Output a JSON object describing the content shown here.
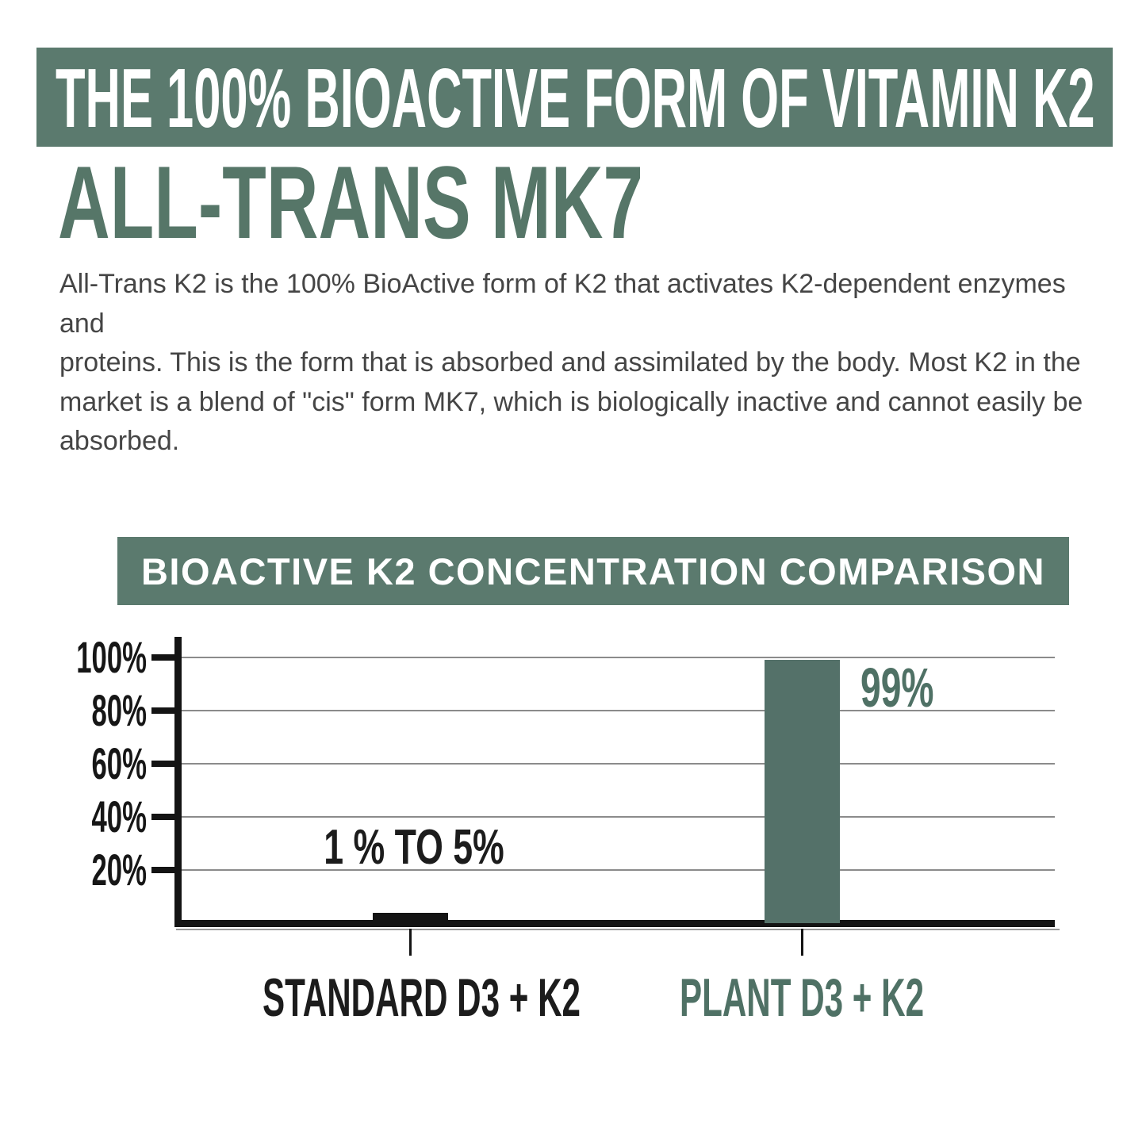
{
  "header": {
    "banner_title": "THE 100% BIOACTIVE FORM OF VITAMIN K2",
    "banner_bg": "#5b7a6e",
    "subtitle": "ALL-TRANS MK7",
    "subtitle_color": "#567668"
  },
  "intro": {
    "lines": [
      "All-Trans K2 is the 100% BioActive form of K2 that activates K2-dependent enzymes and",
      "proteins. This is the form that is absorbed and assimilated by the body. Most K2 in the",
      "market is a blend of \"cis\" form MK7, which is biologically inactive and cannot easily be",
      "absorbed."
    ],
    "text_color": "#454545"
  },
  "chart": {
    "banner_title": "BIOACTIVE K2 CONCENTRATION COMPARISON",
    "banner_bg": "#5b7a6e"
  },
  "chart_data": {
    "type": "bar",
    "title": "BIOACTIVE K2 CONCENTRATION COMPARISON",
    "categories": [
      "STANDARD D3 + K2",
      "PLANT D3 + K2"
    ],
    "values": [
      4,
      99
    ],
    "value_labels": [
      "1 % TO 5%",
      "99%"
    ],
    "value_note": "Standard D3 + K2 bioactive K2 concentration is 1% to 5%; Plant D3 + K2 is 99%",
    "bar_colors": [
      "#141414",
      "#547169"
    ],
    "category_colors": [
      "#1c1c1c",
      "#4f7165"
    ],
    "value_label_colors": [
      "#1c1c1c",
      "#4f7165"
    ],
    "y_ticks": [
      100,
      80,
      60,
      40,
      20
    ],
    "y_tick_labels": [
      "100%",
      "80%",
      "60%",
      "40%",
      "20%"
    ],
    "ylim": [
      0,
      107
    ],
    "xlabel": "",
    "ylabel": "",
    "grid": "horizontal",
    "grid_color": "#8b8b8b",
    "axis_color": "#141414",
    "legend": "none"
  }
}
